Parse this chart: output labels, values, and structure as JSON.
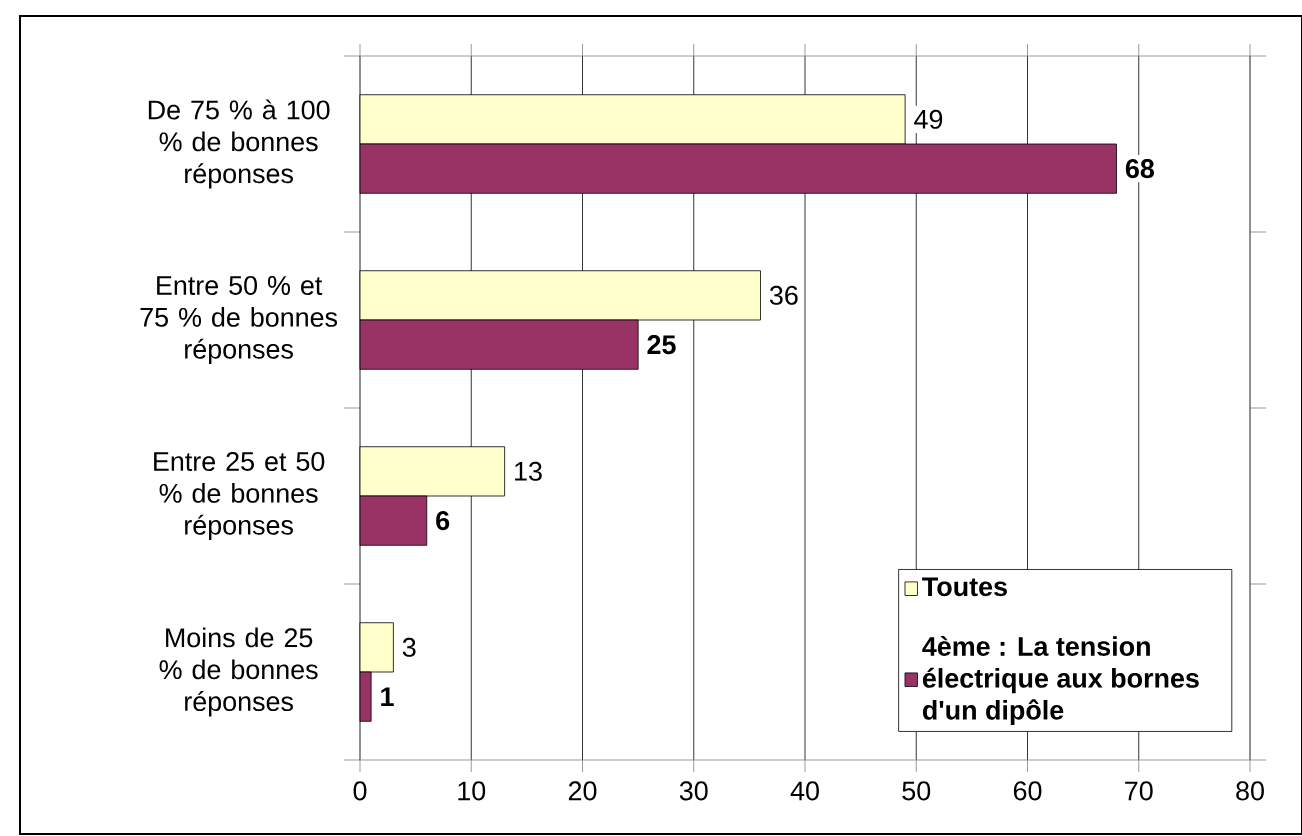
{
  "chart_data": {
    "type": "bar",
    "orientation": "horizontal",
    "categories": [
      "De 75 % à 100 % de bonnes réponses",
      "Entre 50 % et 75 % de bonnes réponses",
      "Entre 25 et 50 % de bonnes réponses",
      "Moins de 25 % de bonnes réponses"
    ],
    "series": [
      {
        "name": "Toutes",
        "color": "#ffffcc",
        "values": [
          49,
          36,
          13,
          3
        ]
      },
      {
        "name": "4ème : La tension électrique aux bornes d'un dipôle",
        "color": "#993366",
        "values": [
          68,
          25,
          6,
          1
        ]
      }
    ],
    "xlim": [
      0,
      80
    ],
    "xticks": [
      0,
      10,
      20,
      30,
      40,
      50,
      60,
      70,
      80
    ],
    "grid": "x",
    "legend": "bottom right",
    "data_labels": true
  }
}
